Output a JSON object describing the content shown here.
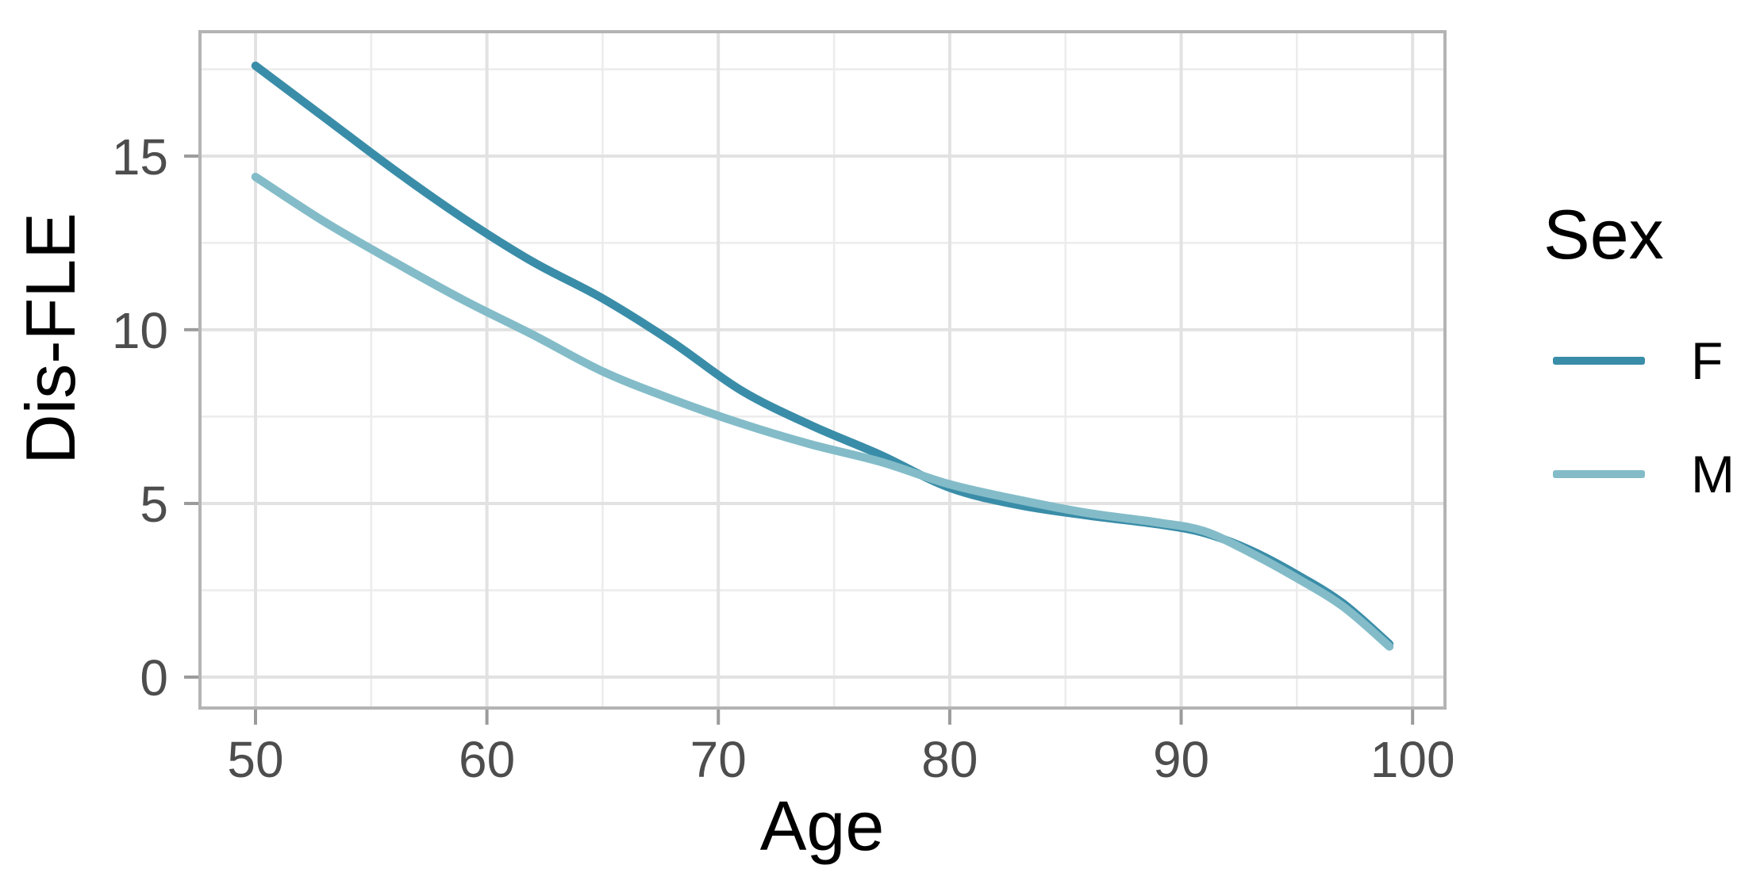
{
  "chart_data": {
    "type": "line",
    "title": "",
    "xlabel": "Age",
    "ylabel": "Dis-FLE",
    "legend": {
      "title": "Sex",
      "position": "right",
      "entries": [
        "F",
        "M"
      ]
    },
    "x_ticks": [
      50,
      60,
      70,
      80,
      90,
      100
    ],
    "x_minor_ticks": [
      55,
      65,
      75,
      85,
      95
    ],
    "y_ticks": [
      0,
      5,
      10,
      15
    ],
    "y_minor_ticks": [
      2.5,
      7.5,
      12.5,
      17.5
    ],
    "xlim": [
      47.6,
      101.4
    ],
    "ylim": [
      -0.89,
      18.58
    ],
    "grid": true,
    "x": [
      50,
      53,
      56,
      59,
      62,
      65,
      68,
      71,
      74,
      77,
      80,
      83,
      86,
      89,
      91,
      93,
      95,
      97,
      99
    ],
    "series": [
      {
        "name": "F",
        "color": "#3a8da8",
        "values": [
          17.6,
          16.1,
          14.6,
          13.2,
          11.95,
          10.9,
          9.65,
          8.25,
          7.25,
          6.4,
          5.45,
          4.95,
          4.65,
          4.4,
          4.15,
          3.65,
          2.95,
          2.12,
          0.95
        ]
      },
      {
        "name": "M",
        "color": "#83bcc8",
        "values": [
          14.4,
          13.1,
          11.95,
          10.85,
          9.85,
          8.8,
          8.0,
          7.3,
          6.7,
          6.2,
          5.55,
          5.1,
          4.72,
          4.45,
          4.2,
          3.58,
          2.85,
          2.03,
          0.88
        ]
      }
    ],
    "theme": {
      "panel_border": "#b4b4b4",
      "grid_major": "#e2e2e2",
      "grid_minor": "#ececec",
      "tick_mark": "#9b9b9b",
      "tick_label": "#4d4d4d",
      "background": "#ffffff"
    }
  }
}
